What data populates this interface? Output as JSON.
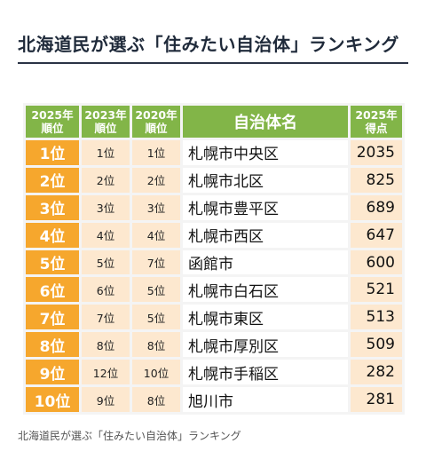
{
  "title": "北海道民が選ぶ「住みたい自治体」ランキング",
  "table": {
    "headers": {
      "rank_2025": [
        "2025年",
        "順位"
      ],
      "rank_2023": [
        "2023年",
        "順位"
      ],
      "rank_2020": [
        "2020年",
        "順位"
      ],
      "municipality": "自治体名",
      "score_2025": [
        "2025年",
        "得点"
      ]
    },
    "rows": [
      {
        "rank_2025": "1位",
        "rank_2023": "1位",
        "rank_2020": "1位",
        "name": "札幌市中央区",
        "score": "2035"
      },
      {
        "rank_2025": "2位",
        "rank_2023": "2位",
        "rank_2020": "2位",
        "name": "札幌市北区",
        "score": "825"
      },
      {
        "rank_2025": "3位",
        "rank_2023": "3位",
        "rank_2020": "3位",
        "name": "札幌市豊平区",
        "score": "689"
      },
      {
        "rank_2025": "4位",
        "rank_2023": "4位",
        "rank_2020": "4位",
        "name": "札幌市西区",
        "score": "647"
      },
      {
        "rank_2025": "5位",
        "rank_2023": "5位",
        "rank_2020": "7位",
        "name": "函館市",
        "score": "600"
      },
      {
        "rank_2025": "6位",
        "rank_2023": "6位",
        "rank_2020": "5位",
        "name": "札幌市白石区",
        "score": "521"
      },
      {
        "rank_2025": "7位",
        "rank_2023": "7位",
        "rank_2020": "5位",
        "name": "札幌市東区",
        "score": "513"
      },
      {
        "rank_2025": "8位",
        "rank_2023": "8位",
        "rank_2020": "8位",
        "name": "札幌市厚別区",
        "score": "509"
      },
      {
        "rank_2025": "9位",
        "rank_2023": "12位",
        "rank_2020": "10位",
        "name": "札幌市手稲区",
        "score": "282"
      },
      {
        "rank_2025": "10位",
        "rank_2023": "9位",
        "rank_2020": "8位",
        "name": "旭川市",
        "score": "281"
      }
    ]
  },
  "caption": "北海道民が選ぶ「住みたい自治体」ランキング",
  "colors": {
    "header_green": "#82b548",
    "rank_orange": "#f6a72d",
    "cell_peach": "#fde8cf",
    "title_rule": "#2b3345"
  }
}
